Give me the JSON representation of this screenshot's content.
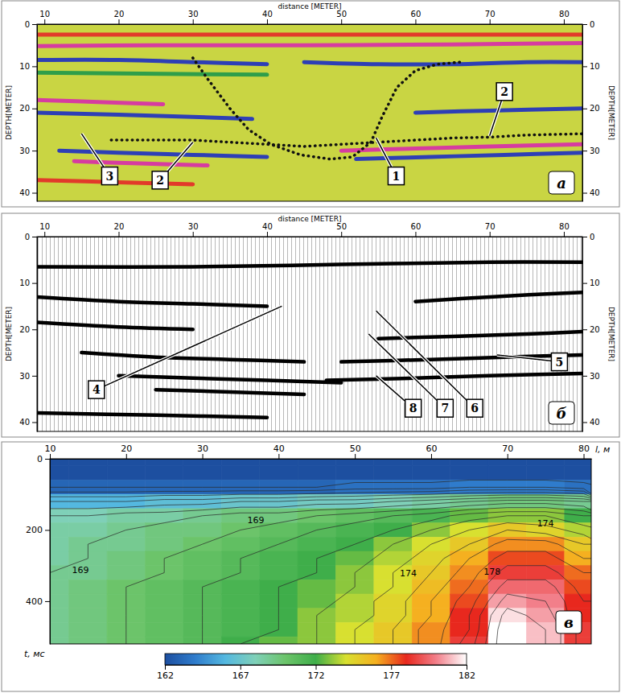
{
  "chart_data": [
    {
      "type": "radargram",
      "x_label": "distance [METER]",
      "y_label": "DEPTH[METER]",
      "y2_label": "DEPTH[METER]",
      "panel_label": "а",
      "xlim": [
        9,
        82.5
      ],
      "ylim": [
        0,
        42
      ],
      "xticks": [
        10,
        20,
        30,
        40,
        50,
        60,
        70,
        80
      ],
      "yticks": [
        0,
        10,
        20,
        30,
        40
      ],
      "horizons": [
        {
          "color": "#e23a2a",
          "x": [
            9,
            30,
            50,
            82.5
          ],
          "y": [
            2.5,
            2.5,
            2.5,
            2.5
          ]
        },
        {
          "color": "#d63ca0",
          "x": [
            9,
            25,
            45,
            65,
            82.5
          ],
          "y": [
            5.2,
            5,
            5,
            4.8,
            4.5
          ]
        },
        {
          "color": "#2e3fb5",
          "x": [
            9,
            20,
            30,
            40
          ],
          "y": [
            8.5,
            8.5,
            9,
            9.5
          ]
        },
        {
          "color": "#2e3fb5",
          "x": [
            45,
            55,
            65,
            75,
            82.5
          ],
          "y": [
            9,
            9.5,
            9.5,
            9,
            9
          ]
        },
        {
          "color": "#2f9e4a",
          "x": [
            9,
            40
          ],
          "y": [
            11.5,
            12
          ]
        },
        {
          "color": "#d63ca0",
          "x": [
            9,
            18,
            26
          ],
          "y": [
            18,
            18.5,
            19
          ]
        },
        {
          "color": "#2e3fb5",
          "x": [
            9,
            20,
            30,
            38
          ],
          "y": [
            21,
            21.5,
            22,
            22.5
          ]
        },
        {
          "color": "#2e3fb5",
          "x": [
            60,
            70,
            82.5
          ],
          "y": [
            21,
            20.5,
            20
          ]
        },
        {
          "color": "#2e3fb5",
          "x": [
            12,
            20,
            30,
            40
          ],
          "y": [
            30,
            30.5,
            31,
            31.5
          ]
        },
        {
          "color": "#d63ca0",
          "x": [
            14,
            22,
            32
          ],
          "y": [
            32.5,
            33,
            33.5
          ]
        },
        {
          "color": "#d63ca0",
          "x": [
            50,
            60,
            70,
            82.5
          ],
          "y": [
            30,
            29.5,
            29,
            28.5
          ]
        },
        {
          "color": "#2e3fb5",
          "x": [
            52,
            62,
            72,
            82.5
          ],
          "y": [
            32,
            31.5,
            31,
            30.5
          ]
        },
        {
          "color": "#e23a2a",
          "x": [
            9,
            20,
            30
          ],
          "y": [
            37,
            37.5,
            38
          ]
        }
      ],
      "boundaries": [
        {
          "line_style": "dotted",
          "x": [
            30,
            32,
            35,
            37.5,
            40.5,
            44.5,
            48.5,
            51.5,
            54,
            55.5,
            57.5,
            60,
            63,
            66
          ],
          "y": [
            8,
            13,
            20,
            25,
            28.5,
            31,
            32,
            31.5,
            28,
            22,
            15,
            11,
            9.5,
            9
          ]
        },
        {
          "line_style": "dotted",
          "x": [
            19,
            25,
            30,
            35,
            40,
            45,
            50,
            55,
            60,
            65,
            70,
            75,
            82.5
          ],
          "y": [
            27.5,
            27.5,
            27.5,
            28,
            28.5,
            29,
            28.5,
            28,
            27.5,
            27,
            26.8,
            26.3,
            26
          ]
        }
      ],
      "callouts": [
        {
          "label": "3",
          "x": 18.8,
          "y": 36,
          "target_x": 15,
          "target_y": 26
        },
        {
          "label": "2",
          "x": 25.6,
          "y": 37,
          "target_x": 30,
          "target_y": 28
        },
        {
          "label": "1",
          "x": 57.4,
          "y": 36,
          "target_x": 54.7,
          "target_y": 27
        },
        {
          "label": "2",
          "x": 72,
          "y": 16,
          "target_x": 70,
          "target_y": 26.5
        }
      ]
    },
    {
      "type": "wiggle_section",
      "x_label": "distance [METER]",
      "y_label": "DEPTH[METER]",
      "y2_label": "DEPTH[METER]",
      "panel_label": "б",
      "xlim": [
        9,
        82.5
      ],
      "ylim": [
        0,
        42
      ],
      "xticks": [
        10,
        20,
        30,
        40,
        50,
        60,
        70,
        80
      ],
      "yticks": [
        0,
        10,
        20,
        30,
        40
      ],
      "horizons": [
        {
          "color": "#000000",
          "x": [
            9,
            30,
            50,
            70,
            82.5
          ],
          "y": [
            6.5,
            6.5,
            6,
            5.5,
            5.5
          ]
        },
        {
          "color": "#000000",
          "x": [
            9,
            20,
            30,
            40
          ],
          "y": [
            13,
            14,
            14.5,
            15
          ]
        },
        {
          "color": "#000000",
          "x": [
            9,
            20,
            30
          ],
          "y": [
            18.5,
            19.5,
            20
          ]
        },
        {
          "color": "#000000",
          "x": [
            15,
            25,
            35,
            45
          ],
          "y": [
            25,
            26,
            26.5,
            27
          ]
        },
        {
          "color": "#000000",
          "x": [
            20,
            30,
            40,
            50
          ],
          "y": [
            30,
            30.5,
            31,
            31.5
          ]
        },
        {
          "color": "#000000",
          "x": [
            25,
            35,
            45
          ],
          "y": [
            33,
            33.5,
            34
          ]
        },
        {
          "color": "#000000",
          "x": [
            48,
            60,
            70,
            82.5
          ],
          "y": [
            31,
            30.5,
            30,
            29.5
          ]
        },
        {
          "color": "#000000",
          "x": [
            50,
            62,
            72,
            82.5
          ],
          "y": [
            27,
            26.5,
            26,
            25.5
          ]
        },
        {
          "color": "#000000",
          "x": [
            55,
            65,
            75,
            82.5
          ],
          "y": [
            22,
            21.5,
            21,
            20.5
          ]
        },
        {
          "color": "#000000",
          "x": [
            60,
            70,
            82.5
          ],
          "y": [
            14,
            13,
            12
          ]
        },
        {
          "color": "#000000",
          "x": [
            9,
            25,
            40
          ],
          "y": [
            38,
            38.5,
            39
          ]
        }
      ],
      "callouts": [
        {
          "label": "4",
          "x": 17,
          "y": 33,
          "target_x": 42,
          "target_y": 15
        },
        {
          "label": "8",
          "x": 59.7,
          "y": 37,
          "target_x": 54.7,
          "target_y": 30
        },
        {
          "label": "7",
          "x": 64,
          "y": 37,
          "target_x": 53.7,
          "target_y": 21
        },
        {
          "label": "6",
          "x": 68,
          "y": 37,
          "target_x": 54.7,
          "target_y": 16
        },
        {
          "label": "5",
          "x": 79.4,
          "y": 27,
          "target_x": 71,
          "target_y": 25.5
        }
      ]
    },
    {
      "type": "contour",
      "x_label": "l, м",
      "y_label": "t, мс",
      "panel_label": "в",
      "xlim": [
        10,
        81
      ],
      "ylim": [
        0,
        520
      ],
      "xticks": [
        10,
        20,
        30,
        40,
        50,
        60,
        70,
        80
      ],
      "yticks": [
        0,
        200,
        400
      ],
      "cells": {
        "x": [
          10,
          15,
          20,
          25,
          30,
          35,
          40,
          45,
          50,
          55,
          60,
          65,
          70,
          75,
          80
        ],
        "y": [
          0,
          40,
          80,
          120,
          160,
          200,
          240,
          280,
          320,
          360,
          400,
          440,
          480,
          520
        ],
        "values": [
          [
            162,
            162,
            162,
            162,
            162,
            162,
            162,
            162,
            162,
            162,
            162,
            162,
            162,
            162,
            162
          ],
          [
            162,
            162,
            162,
            162,
            162,
            162,
            162,
            162,
            162,
            162,
            162,
            162,
            162,
            162,
            162
          ],
          [
            163,
            163,
            163,
            163,
            163,
            163,
            163,
            163,
            163.5,
            163.5,
            163.5,
            164,
            164,
            164,
            163.5
          ],
          [
            166,
            166,
            166,
            166.5,
            166.5,
            167,
            167,
            167.5,
            167.5,
            168,
            168.5,
            169,
            169.5,
            169.5,
            169
          ],
          [
            168,
            168,
            168.5,
            168.5,
            169,
            169.5,
            169.5,
            170,
            170.5,
            171,
            171.5,
            172.5,
            173,
            173,
            172
          ],
          [
            168.5,
            168.5,
            169,
            169.5,
            169.5,
            170,
            170.5,
            171,
            171.5,
            172,
            173,
            174,
            175,
            174.5,
            173.5
          ],
          [
            168.5,
            169,
            169,
            169.5,
            170,
            170.5,
            171,
            171.5,
            172,
            173,
            174,
            175,
            176.5,
            176.5,
            175
          ],
          [
            168.5,
            169,
            169.5,
            170,
            170.5,
            171,
            171.5,
            172,
            172.5,
            173.5,
            174.5,
            176,
            177.5,
            177.5,
            176
          ],
          [
            169,
            169,
            169.5,
            170,
            170.5,
            171,
            171.5,
            172,
            173,
            174,
            175,
            176.5,
            178.5,
            178.5,
            177
          ],
          [
            169,
            169.5,
            170,
            170.5,
            171,
            171.5,
            172,
            172.5,
            173,
            174,
            175.5,
            177,
            179.5,
            179.5,
            177.5
          ],
          [
            169,
            169.5,
            170,
            170.5,
            171,
            171.5,
            172,
            172.5,
            173.5,
            174.5,
            176,
            177.5,
            180.5,
            180,
            178
          ],
          [
            169,
            169.5,
            170,
            170.5,
            171,
            171.5,
            172,
            173,
            173.5,
            174.5,
            176,
            178,
            181.5,
            180.5,
            178
          ],
          [
            169,
            169.5,
            170,
            170.5,
            171,
            171.5,
            172,
            173,
            174,
            175,
            176.5,
            178,
            182,
            181,
            178.5
          ],
          [
            169,
            169.5,
            170,
            170.5,
            171,
            172,
            172.5,
            173,
            174,
            175,
            176.5,
            178.5,
            182,
            181,
            178.5
          ]
        ]
      },
      "contour_levels": [
        163,
        164,
        165,
        166,
        167,
        168,
        169,
        170,
        171,
        172,
        173,
        174,
        175,
        176,
        177,
        178,
        179,
        180,
        181
      ],
      "contour_labels": [
        {
          "value": 169,
          "x": 37,
          "y": 180
        },
        {
          "value": 169,
          "x": 14,
          "y": 320
        },
        {
          "value": 174,
          "x": 57,
          "y": 330
        },
        {
          "value": 174,
          "x": 75,
          "y": 190
        },
        {
          "value": 178,
          "x": 68,
          "y": 325
        }
      ],
      "colorbar": {
        "range": [
          162,
          182
        ],
        "ticks": [
          162,
          167,
          172,
          177,
          182
        ]
      }
    }
  ]
}
